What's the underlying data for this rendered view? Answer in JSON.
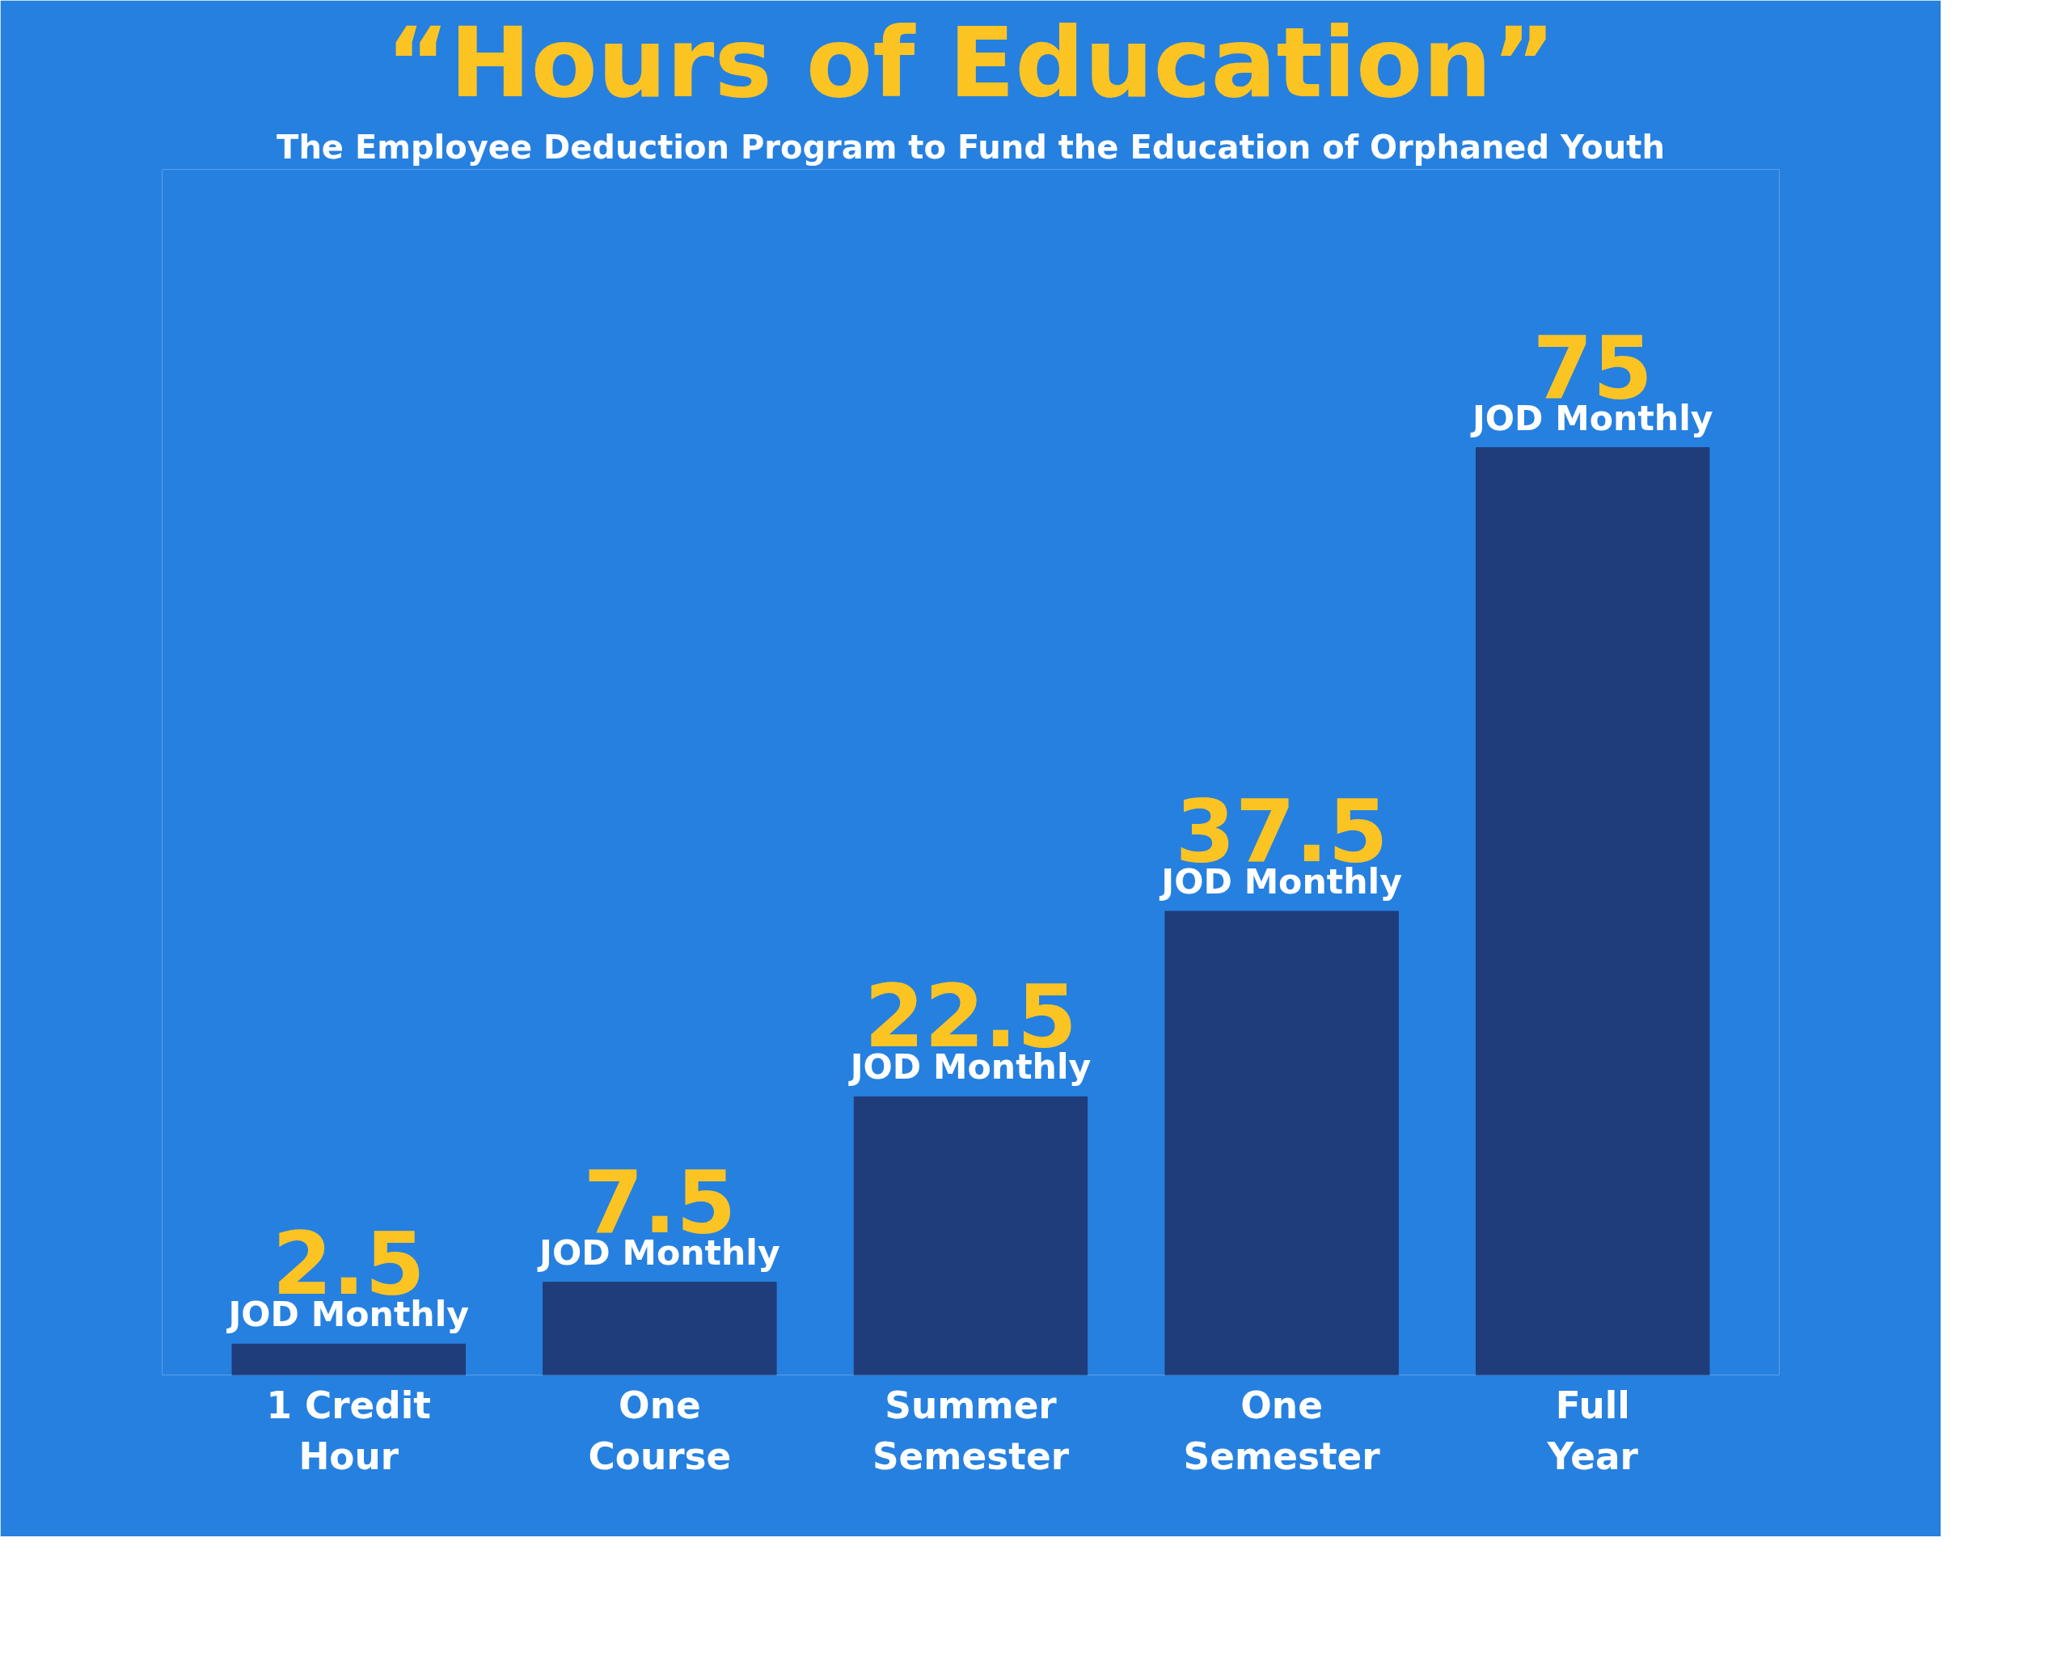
{
  "chart_data": {
    "type": "bar",
    "title": "“Hours of Education”",
    "subtitle": "The Employee Deduction Program to Fund the Education of Orphaned Youth",
    "categories": [
      "1 Credit Hour",
      "One Course",
      "Summer Semester",
      "One Semester",
      "Full Year"
    ],
    "values": [
      2.5,
      7.5,
      22.5,
      37.5,
      75
    ],
    "color": "#1f3d7a",
    "data_labels": true,
    "annotations": [
      {
        "text": "JOD Monthly",
        "x": "1 Credit Hour",
        "y": 2.5
      },
      {
        "text": "JOD Monthly",
        "x": "One Course",
        "y": 7.5
      },
      {
        "text": "JOD Monthly",
        "x": "Summer Semester",
        "y": 22.5
      },
      {
        "text": "JOD Monthly",
        "x": "One Semester",
        "y": 37.5
      },
      {
        "text": "JOD Monthly",
        "x": "Full Year",
        "y": 75
      }
    ],
    "grid": false
  }
}
